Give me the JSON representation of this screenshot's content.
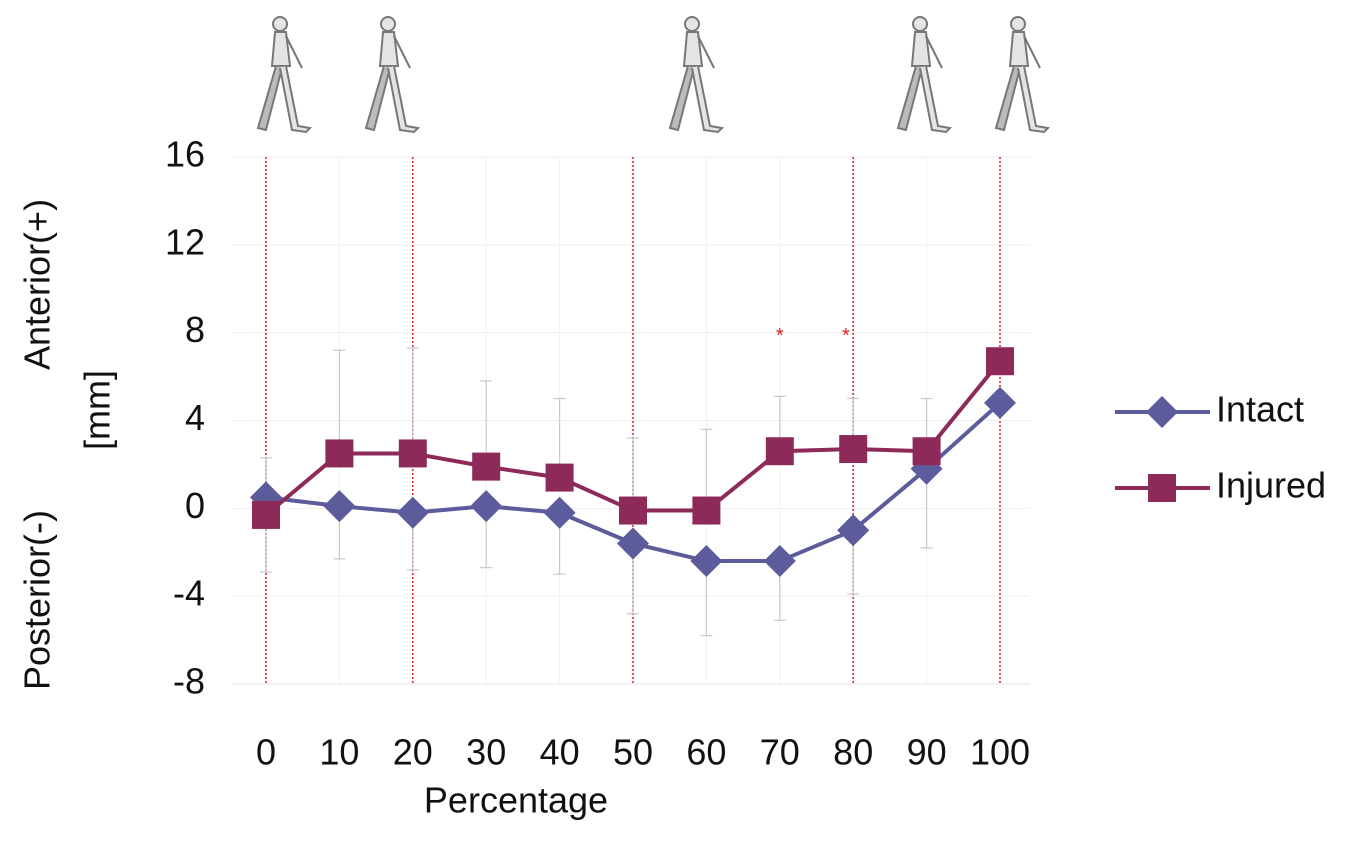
{
  "chart_data": {
    "type": "line",
    "xlabel": "Percentage",
    "ylabel": [
      "Posterior(-)",
      "Anterior(+)"
    ],
    "ylabel2": "[mm]",
    "x": [
      0,
      10,
      20,
      30,
      40,
      50,
      60,
      70,
      80,
      90,
      100
    ],
    "xlim": [
      0,
      100
    ],
    "xticks": [
      0,
      10,
      20,
      30,
      40,
      50,
      60,
      70,
      80,
      90,
      100
    ],
    "ylim": [
      -8,
      16
    ],
    "yticks": [
      -8,
      -4,
      0,
      4,
      8,
      12,
      16
    ],
    "grid": true,
    "legend": "right",
    "series": [
      {
        "name": "Intact",
        "color": "#5c5c9c",
        "marker": "diamond",
        "values": [
          0.5,
          0.1,
          -0.2,
          0.1,
          -0.2,
          -1.6,
          -2.4,
          -2.4,
          -1.0,
          1.8,
          4.8
        ],
        "errors": [
          3.4,
          2.4,
          2.6,
          2.8,
          2.8,
          3.2,
          3.4,
          2.7,
          2.9,
          3.6,
          0
        ]
      },
      {
        "name": "Injured",
        "color": "#8e2a5a",
        "marker": "square",
        "values": [
          -0.3,
          2.5,
          2.5,
          1.9,
          1.4,
          -0.1,
          -0.1,
          2.6,
          2.7,
          2.6,
          6.7
        ],
        "errors": [
          2.6,
          4.7,
          4.8,
          3.9,
          3.6,
          3.3,
          3.7,
          2.5,
          2.3,
          2.4,
          0
        ]
      }
    ],
    "phase_lines": [
      0,
      20,
      50,
      80,
      100
    ],
    "phase_line_color": "#d9202a",
    "annotations": [
      {
        "text": "*",
        "x": 70,
        "y": 8
      },
      {
        "text": "*",
        "x": 79,
        "y": 8
      }
    ]
  }
}
